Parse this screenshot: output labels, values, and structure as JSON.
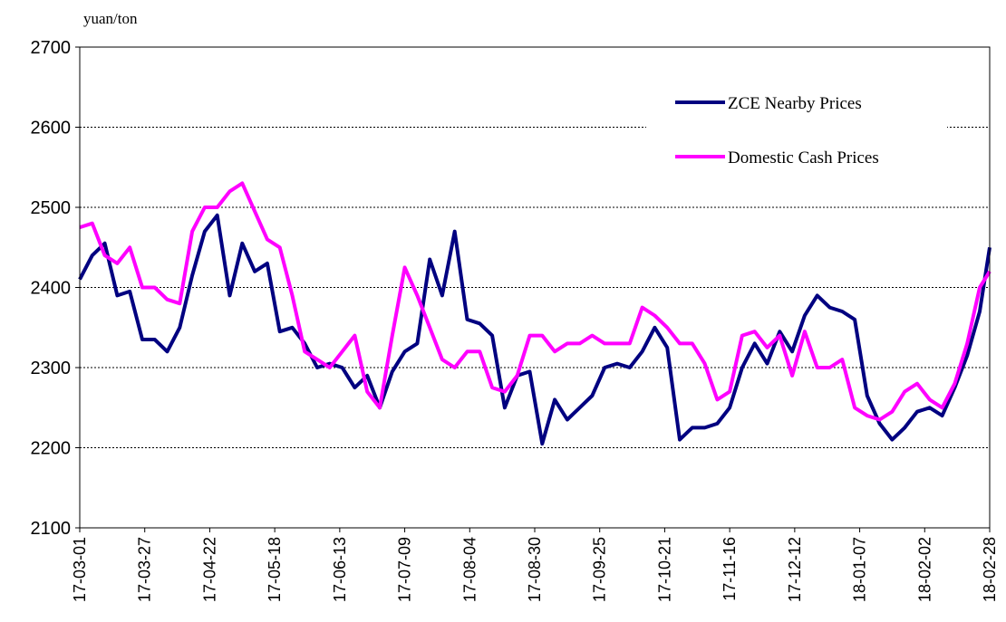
{
  "chart_data": {
    "type": "line",
    "y_label": "yuan/ton",
    "x": [
      "17-03-01",
      "17-03-06",
      "17-03-11",
      "17-03-16",
      "17-03-21",
      "17-03-26",
      "17-03-31",
      "17-04-05",
      "17-04-10",
      "17-04-15",
      "17-04-20",
      "17-04-25",
      "17-04-30",
      "17-05-05",
      "17-05-10",
      "17-05-15",
      "17-05-20",
      "17-05-25",
      "17-05-30",
      "17-06-04",
      "17-06-09",
      "17-06-14",
      "17-06-19",
      "17-06-24",
      "17-06-29",
      "17-07-04",
      "17-07-09",
      "17-07-14",
      "17-07-19",
      "17-07-24",
      "17-07-29",
      "17-08-03",
      "17-08-08",
      "17-08-13",
      "17-08-18",
      "17-08-23",
      "17-08-28",
      "17-09-02",
      "17-09-07",
      "17-09-12",
      "17-09-17",
      "17-09-22",
      "17-09-27",
      "17-10-02",
      "17-10-07",
      "17-10-12",
      "17-10-17",
      "17-10-22",
      "17-10-27",
      "17-11-01",
      "17-11-06",
      "17-11-11",
      "17-11-16",
      "17-11-21",
      "17-11-26",
      "17-12-01",
      "17-12-06",
      "17-12-11",
      "17-12-16",
      "17-12-21",
      "17-12-26",
      "17-12-31",
      "18-01-05",
      "18-01-10",
      "18-01-15",
      "18-01-20",
      "18-01-25",
      "18-01-30",
      "18-02-04",
      "18-02-09",
      "18-02-14",
      "18-02-19",
      "18-02-24",
      "18-02-28"
    ],
    "series": [
      {
        "name": "ZCE Nearby Prices",
        "color": "#000080",
        "values": [
          2410,
          2440,
          2455,
          2390,
          2395,
          2335,
          2335,
          2320,
          2350,
          2415,
          2470,
          2490,
          2390,
          2455,
          2420,
          2430,
          2345,
          2350,
          2330,
          2300,
          2305,
          2300,
          2275,
          2290,
          2250,
          2295,
          2320,
          2330,
          2435,
          2390,
          2470,
          2360,
          2355,
          2340,
          2250,
          2290,
          2295,
          2205,
          2260,
          2235,
          2250,
          2265,
          2300,
          2305,
          2300,
          2320,
          2350,
          2325,
          2210,
          2225,
          2225,
          2230,
          2250,
          2300,
          2330,
          2305,
          2345,
          2320,
          2365,
          2390,
          2375,
          2370,
          2360,
          2265,
          2230,
          2210,
          2225,
          2245,
          2250,
          2240,
          2275,
          2315,
          2370,
          2450
        ]
      },
      {
        "name": "Domestic Cash Prices",
        "color": "#ff00ff",
        "values": [
          2475,
          2480,
          2440,
          2430,
          2450,
          2400,
          2400,
          2385,
          2380,
          2470,
          2500,
          2500,
          2520,
          2530,
          2495,
          2460,
          2450,
          2390,
          2320,
          2310,
          2300,
          2320,
          2340,
          2270,
          2250,
          2340,
          2425,
          2390,
          2350,
          2310,
          2300,
          2320,
          2320,
          2275,
          2270,
          2290,
          2340,
          2340,
          2320,
          2330,
          2330,
          2340,
          2330,
          2330,
          2330,
          2375,
          2365,
          2350,
          2330,
          2330,
          2305,
          2260,
          2270,
          2340,
          2345,
          2325,
          2340,
          2290,
          2345,
          2300,
          2300,
          2310,
          2250,
          2240,
          2235,
          2245,
          2270,
          2280,
          2260,
          2250,
          2280,
          2330,
          2400,
          2420
        ]
      }
    ],
    "xlim": [
      "17-03-01",
      "18-02-28"
    ],
    "xticks": [
      "17-03-01",
      "17-03-27",
      "17-04-22",
      "17-05-18",
      "17-06-13",
      "17-07-09",
      "17-08-04",
      "17-08-30",
      "17-09-25",
      "17-10-21",
      "17-11-16",
      "17-12-12",
      "18-01-07",
      "18-02-02",
      "18-02-28"
    ],
    "ylim": [
      2100,
      2700
    ],
    "yticks": [
      2100,
      2200,
      2300,
      2400,
      2500,
      2600,
      2700
    ],
    "grid": true,
    "legend": "upper right"
  }
}
